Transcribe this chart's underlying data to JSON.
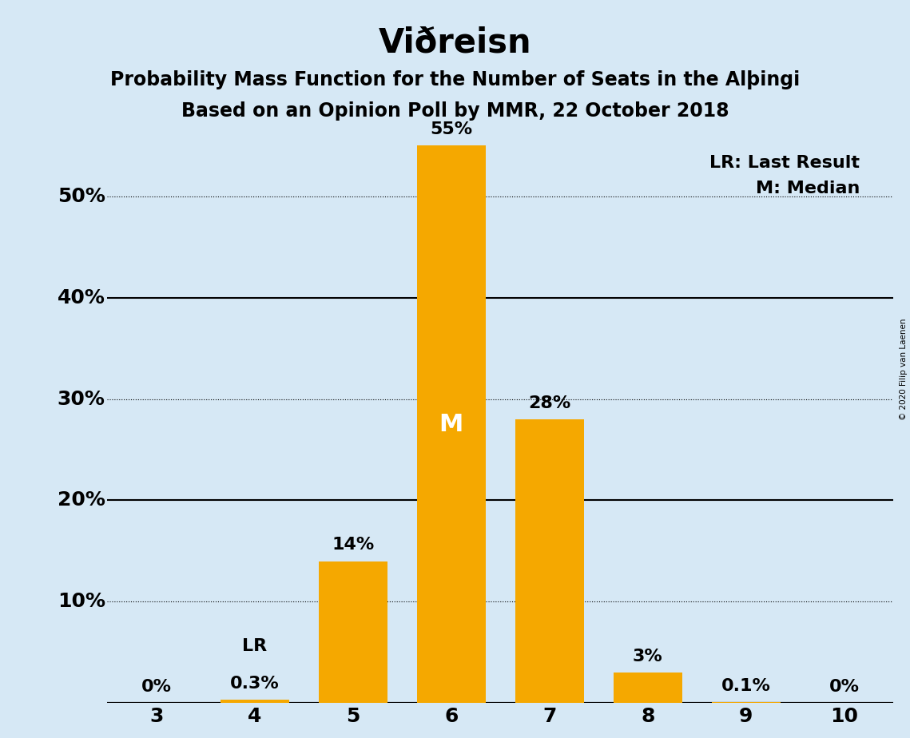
{
  "title": "Viðreisn",
  "subtitle1": "Probability Mass Function for the Number of Seats in the Alþingi",
  "subtitle2": "Based on an Opinion Poll by MMR, 22 October 2018",
  "copyright_text": "© 2020 Filip van Laenen",
  "legend_lr": "LR: Last Result",
  "legend_m": "M: Median",
  "categories": [
    3,
    4,
    5,
    6,
    7,
    8,
    9,
    10
  ],
  "values": [
    0.0,
    0.3,
    14.0,
    55.0,
    28.0,
    3.0,
    0.1,
    0.0
  ],
  "labels": [
    "0%",
    "0.3%",
    "14%",
    "55%",
    "28%",
    "3%",
    "0.1%",
    "0%"
  ],
  "bar_color": "#F5A800",
  "background_color": "#D6E8F5",
  "median_bar": 6,
  "lr_bar": 4,
  "ylim": [
    0,
    62
  ],
  "ytick_values": [
    0,
    10,
    20,
    30,
    40,
    50
  ],
  "ytick_labels": [
    "",
    "10%",
    "20%",
    "30%",
    "40%",
    "50%"
  ],
  "solid_yticks": [
    0,
    20,
    40
  ],
  "dotted_yticks": [
    10,
    30,
    50
  ],
  "bar_width": 0.7,
  "title_fontsize": 30,
  "subtitle_fontsize": 17,
  "label_fontsize": 16,
  "tick_fontsize": 18,
  "legend_fontsize": 16,
  "median_label_color": "white",
  "median_label_fontsize": 22
}
